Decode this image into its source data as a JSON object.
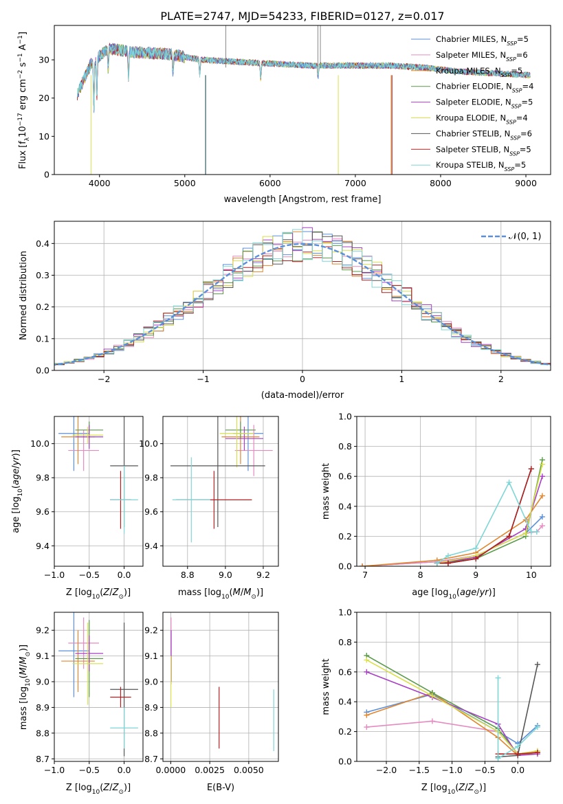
{
  "title": "PLATE=2747, MJD=54233, FIBERID=0127, z=0.017",
  "colors": {
    "chab_miles": "#5b8fd9",
    "salp_miles": "#e58ac0",
    "krou_miles": "#e0862e",
    "chab_elodie": "#5a9a4a",
    "salp_elodie": "#a63fc4",
    "krou_elodie": "#d9e04a",
    "chab_stelib": "#555555",
    "salp_stelib": "#b02020",
    "krou_stelib": "#7fd6d6"
  },
  "legend1": [
    {
      "name": "Chabrier MILES",
      "n": "5",
      "color": "#5b8fd9"
    },
    {
      "name": "Salpeter MILES",
      "n": "6",
      "color": "#e58ac0"
    },
    {
      "name": "Kroupa MILES",
      "n": "5",
      "color": "#e0862e"
    },
    {
      "name": "Chabrier ELODIE",
      "n": "4",
      "color": "#5a9a4a"
    },
    {
      "name": "Salpeter ELODIE",
      "n": "5",
      "color": "#a63fc4"
    },
    {
      "name": "Kroupa ELODIE",
      "n": "4",
      "color": "#d9e04a"
    },
    {
      "name": "Chabrier STELIB",
      "n": "6",
      "color": "#555555"
    },
    {
      "name": "Salpeter STELIB",
      "n": "5",
      "color": "#b02020"
    },
    {
      "name": "Kroupa STELIB",
      "n": "5",
      "color": "#7fd6d6"
    }
  ],
  "legend2": {
    "label": "𝒩(0, 1)"
  },
  "labels": {
    "p1_x": "wavelength [Angstrom, rest frame]",
    "p1_y": "Flux [f",
    "p2_x": "(data-model)/error",
    "p2_y": "Normed distribution",
    "p3_y": "age  [log",
    "z_label": "Z [log",
    "mass_x": "mass [log",
    "mw_y": "mass weight",
    "age_x": "age  [log",
    "mass_y": "mass [log",
    "ebv_x": "E(B-V)"
  },
  "chart_data": [
    {
      "type": "line",
      "title": "PLATE=2747, MJD=54233, FIBERID=0127, z=0.017",
      "xlabel": "wavelength [Angstrom, rest frame]",
      "ylabel": "Flux [fλ 10^-17 erg cm^-2 s^-1 A^-1]",
      "xlim": [
        3470,
        9290
      ],
      "ylim": [
        0,
        39
      ],
      "xticks": [
        4000,
        5000,
        6000,
        7000,
        8000,
        9000
      ],
      "yticks": [
        0,
        10,
        20,
        30
      ],
      "continuum": {
        "x": [
          3740,
          3900,
          4100,
          4400,
          4800,
          5200,
          5600,
          6000,
          6500,
          7000,
          7400,
          7800,
          8200,
          8600,
          9050
        ],
        "y": [
          21,
          29,
          33,
          32,
          31.5,
          30,
          29.5,
          29,
          28.5,
          28.5,
          28.5,
          28,
          27,
          26.5,
          26
        ]
      },
      "series": [
        {
          "name": "Chabrier MILES, N_SSP=5"
        },
        {
          "name": "Salpeter MILES, N_SSP=6"
        },
        {
          "name": "Kroupa MILES, N_SSP=5"
        },
        {
          "name": "Chabrier ELODIE, N_SSP=4"
        },
        {
          "name": "Salpeter ELODIE, N_SSP=5"
        },
        {
          "name": "Kroupa ELODIE, N_SSP=4"
        },
        {
          "name": "Chabrier STELIB, N_SSP=6"
        },
        {
          "name": "Salpeter STELIB, N_SSP=5"
        },
        {
          "name": "Kroupa STELIB, N_SSP=5"
        }
      ]
    },
    {
      "type": "step",
      "xlabel": "(data-model)/error",
      "ylabel": "Normed distribution",
      "xlim": [
        -2.5,
        2.5
      ],
      "ylim": [
        0,
        0.47
      ],
      "xticks": [
        -2,
        -1,
        0,
        1,
        2
      ],
      "yticks": [
        0.0,
        0.1,
        0.2,
        0.3,
        0.4
      ],
      "bin_width": 0.1,
      "reference": {
        "name": "𝒩(0, 1)",
        "mean": 0,
        "sigma": 1
      }
    },
    {
      "type": "errorbar",
      "xlabel": "Z [log10(Z/Z⊙)]",
      "ylabel": "age [log10(age/yr)]",
      "xlim": [
        -1.0,
        0.27
      ],
      "ylim": [
        9.28,
        10.16
      ],
      "xticks": [
        -1.0,
        -0.5,
        0.0
      ],
      "yticks": [
        9.4,
        9.6,
        9.8,
        10.0
      ],
      "points": [
        {
          "x": -0.72,
          "xerr": 0.22,
          "y": 10.06,
          "yerr": 0.22,
          "c": "chab_miles"
        },
        {
          "x": -0.58,
          "xerr": 0.22,
          "y": 9.96,
          "yerr": 0.12,
          "c": "salp_miles"
        },
        {
          "x": -0.66,
          "xerr": 0.24,
          "y": 10.04,
          "yerr": 0.16,
          "c": "krou_miles"
        },
        {
          "x": -0.5,
          "xerr": 0.2,
          "y": 10.08,
          "yerr": 0.05,
          "c": "chab_elodie"
        },
        {
          "x": -0.5,
          "xerr": 0.2,
          "y": 10.04,
          "yerr": 0.07,
          "c": "salp_elodie"
        },
        {
          "x": -0.52,
          "xerr": 0.22,
          "y": 10.05,
          "yerr": 0.05,
          "c": "krou_elodie"
        },
        {
          "x": 0.0,
          "xerr": 0.2,
          "y": 9.87,
          "yerr": 0.36,
          "c": "chab_stelib"
        },
        {
          "x": -0.05,
          "xerr": 0.15,
          "y": 9.67,
          "yerr": 0.17,
          "c": "salp_stelib"
        },
        {
          "x": 0.0,
          "xerr": 0.2,
          "y": 9.67,
          "yerr": 0.2,
          "c": "krou_stelib"
        }
      ]
    },
    {
      "type": "errorbar",
      "xlabel": "mass [log10(M/M⊙)]",
      "ylabel": "",
      "xlim": [
        8.67,
        9.28
      ],
      "ylim": [
        9.28,
        10.16
      ],
      "xticks": [
        8.8,
        9.0,
        9.2
      ],
      "yticks": [
        9.4,
        9.6,
        9.8,
        10.0
      ],
      "points": [
        {
          "x": 9.12,
          "xerr": 0.08,
          "y": 10.06,
          "yerr": 0.22,
          "c": "chab_miles"
        },
        {
          "x": 9.15,
          "xerr": 0.1,
          "y": 9.96,
          "yerr": 0.15,
          "c": "salp_miles"
        },
        {
          "x": 9.08,
          "xerr": 0.1,
          "y": 10.04,
          "yerr": 0.16,
          "c": "krou_miles"
        },
        {
          "x": 9.08,
          "xerr": 0.08,
          "y": 10.08,
          "yerr": 0.05,
          "c": "chab_elodie"
        },
        {
          "x": 9.1,
          "xerr": 0.1,
          "y": 10.03,
          "yerr": 0.07,
          "c": "salp_elodie"
        },
        {
          "x": 9.06,
          "xerr": 0.09,
          "y": 10.06,
          "yerr": 0.2,
          "c": "krou_elodie"
        },
        {
          "x": 8.96,
          "xerr": 0.25,
          "y": 9.87,
          "yerr": 0.36,
          "c": "chab_stelib"
        },
        {
          "x": 8.94,
          "xerr": 0.2,
          "y": 9.67,
          "yerr": 0.17,
          "c": "salp_stelib"
        },
        {
          "x": 8.82,
          "xerr": 0.1,
          "y": 9.67,
          "yerr": 0.25,
          "c": "krou_stelib"
        }
      ]
    },
    {
      "type": "line",
      "xlabel": "age [log10(age/yr)]",
      "ylabel": "mass weight",
      "xlim": [
        6.85,
        10.35
      ],
      "ylim": [
        0,
        1
      ],
      "xticks": [
        7,
        8,
        9,
        10
      ],
      "yticks": [
        0.0,
        0.2,
        0.4,
        0.6,
        0.8,
        1.0
      ],
      "series": [
        {
          "c": "chab_miles",
          "x": [
            6.95,
            8.3,
            9.0,
            9.9,
            10.2
          ],
          "y": [
            0.0,
            0.03,
            0.07,
            0.22,
            0.33
          ]
        },
        {
          "c": "salp_miles",
          "x": [
            6.95,
            8.3,
            9.0,
            9.9,
            10.1,
            10.2
          ],
          "y": [
            0.0,
            0.03,
            0.07,
            0.22,
            0.23,
            0.27
          ]
        },
        {
          "c": "krou_miles",
          "x": [
            6.95,
            8.3,
            9.0,
            9.9,
            10.2
          ],
          "y": [
            0.0,
            0.04,
            0.09,
            0.31,
            0.47
          ]
        },
        {
          "c": "chab_elodie",
          "x": [
            8.3,
            9.0,
            9.9,
            10.2
          ],
          "y": [
            0.02,
            0.05,
            0.2,
            0.71
          ]
        },
        {
          "c": "salp_elodie",
          "x": [
            8.3,
            9.0,
            9.9,
            10.2
          ],
          "y": [
            0.02,
            0.06,
            0.25,
            0.6
          ]
        },
        {
          "c": "krou_elodie",
          "x": [
            8.3,
            9.0,
            9.9,
            10.2
          ],
          "y": [
            0.02,
            0.07,
            0.22,
            0.68
          ]
        },
        {
          "c": "chab_stelib",
          "x": [
            8.3,
            8.5,
            9.0,
            9.6,
            10.0
          ],
          "y": [
            0.02,
            0.02,
            0.05,
            0.2,
            0.65
          ]
        },
        {
          "c": "salp_stelib",
          "x": [
            8.3,
            8.5,
            9.0,
            9.6,
            10.0
          ],
          "y": [
            0.02,
            0.02,
            0.05,
            0.2,
            0.65
          ]
        },
        {
          "c": "krou_stelib",
          "x": [
            8.3,
            8.5,
            9.0,
            9.6,
            10.0,
            10.1
          ],
          "y": [
            0.02,
            0.07,
            0.12,
            0.56,
            0.23,
            0.23
          ]
        }
      ]
    },
    {
      "type": "errorbar",
      "xlabel": "Z [log10(Z/Z⊙)]",
      "ylabel": "mass [log10(M/M⊙)]",
      "xlim": [
        -1.0,
        0.27
      ],
      "ylim": [
        8.69,
        9.27
      ],
      "xticks": [
        -1.0,
        -0.5,
        0.0
      ],
      "yticks": [
        8.7,
        8.8,
        8.9,
        9.0,
        9.1,
        9.2
      ],
      "points": [
        {
          "x": -0.72,
          "xerr": 0.22,
          "y": 9.12,
          "yerr": 0.18,
          "c": "chab_miles"
        },
        {
          "x": -0.58,
          "xerr": 0.22,
          "y": 9.15,
          "yerr": 0.1,
          "c": "salp_miles"
        },
        {
          "x": -0.66,
          "xerr": 0.24,
          "y": 9.08,
          "yerr": 0.12,
          "c": "krou_miles"
        },
        {
          "x": -0.5,
          "xerr": 0.2,
          "y": 9.09,
          "yerr": 0.15,
          "c": "chab_elodie"
        },
        {
          "x": -0.5,
          "xerr": 0.2,
          "y": 9.11,
          "yerr": 0.07,
          "c": "salp_elodie"
        },
        {
          "x": -0.52,
          "xerr": 0.22,
          "y": 9.07,
          "yerr": 0.16,
          "c": "krou_elodie"
        },
        {
          "x": 0.0,
          "xerr": 0.2,
          "y": 8.97,
          "yerr": 0.26,
          "c": "chab_stelib"
        },
        {
          "x": -0.05,
          "xerr": 0.15,
          "y": 8.94,
          "yerr": 0.04,
          "c": "salp_stelib"
        },
        {
          "x": 0.0,
          "xerr": 0.2,
          "y": 8.82,
          "yerr": 0.08,
          "c": "krou_stelib"
        }
      ]
    },
    {
      "type": "errorbar",
      "xlabel": "E(B-V)",
      "ylabel": "",
      "xlim": [
        -0.0005,
        0.0069
      ],
      "ylim": [
        8.69,
        9.27
      ],
      "xticks": [
        0.0,
        0.0025,
        0.005
      ],
      "xticklabels": [
        "0.0000",
        "0.0025",
        "0.0050"
      ],
      "yticks": [
        8.7,
        8.8,
        8.9,
        9.0,
        9.1,
        9.2
      ],
      "points": [
        {
          "x": 2e-05,
          "xerr": 0,
          "y": 9.12,
          "yerr": 0.13,
          "c": "salp_miles"
        },
        {
          "x": 3e-05,
          "xerr": 0,
          "y": 9.1,
          "yerr": 0.1,
          "c": "salp_elodie"
        },
        {
          "x": 1e-05,
          "xerr": 0,
          "y": 9.0,
          "yerr": 0.1,
          "c": "krou_elodie"
        },
        {
          "x": 0.0031,
          "xerr": 0,
          "y": 8.86,
          "yerr": 0.12,
          "c": "salp_stelib"
        },
        {
          "x": 0.0066,
          "xerr": 0,
          "y": 8.85,
          "yerr": 0.12,
          "c": "krou_stelib"
        }
      ]
    },
    {
      "type": "line",
      "xlabel": "Z [log10(Z/Z⊙)]",
      "ylabel": "mass weight",
      "xlim": [
        -2.45,
        0.5
      ],
      "ylim": [
        0,
        1
      ],
      "xticks": [
        -2.0,
        -1.5,
        -1.0,
        -0.5,
        0.0
      ],
      "yticks": [
        0.0,
        0.2,
        0.4,
        0.6,
        0.8,
        1.0
      ],
      "series": [
        {
          "c": "chab_miles",
          "x": [
            -2.3,
            -1.3,
            -0.3,
            0.0,
            0.3
          ],
          "y": [
            0.33,
            0.45,
            0.2,
            0.12,
            0.24
          ]
        },
        {
          "c": "salp_miles",
          "x": [
            -2.3,
            -1.3,
            -0.3,
            0.0,
            0.3
          ],
          "y": [
            0.23,
            0.27,
            0.2,
            0.05,
            0.07
          ]
        },
        {
          "c": "krou_miles",
          "x": [
            -2.3,
            -1.3,
            -0.3,
            0.0,
            0.3
          ],
          "y": [
            0.31,
            0.46,
            0.16,
            0.04,
            0.06
          ]
        },
        {
          "c": "chab_elodie",
          "x": [
            -2.3,
            -1.3,
            -0.3,
            0.0,
            0.3
          ],
          "y": [
            0.71,
            0.46,
            0.22,
            0.05,
            0.06
          ]
        },
        {
          "c": "salp_elodie",
          "x": [
            -2.3,
            -1.3,
            -0.3,
            0.0,
            0.3
          ],
          "y": [
            0.6,
            0.43,
            0.25,
            0.04,
            0.05
          ]
        },
        {
          "c": "krou_elodie",
          "x": [
            -2.3,
            -1.3,
            -0.3,
            0.0,
            0.3
          ],
          "y": [
            0.68,
            0.44,
            0.2,
            0.05,
            0.07
          ]
        },
        {
          "c": "chab_stelib",
          "x": [
            -0.3,
            0.0,
            0.3
          ],
          "y": [
            0.03,
            0.04,
            0.65
          ]
        },
        {
          "c": "salp_stelib",
          "x": [
            -0.3,
            0.0,
            0.3
          ],
          "y": [
            0.05,
            0.05,
            0.06
          ]
        },
        {
          "c": "krou_stelib",
          "x": [
            -0.3,
            -0.3,
            0.0,
            0.3
          ],
          "y": [
            0.56,
            0.02,
            0.1,
            0.23
          ]
        }
      ]
    }
  ]
}
